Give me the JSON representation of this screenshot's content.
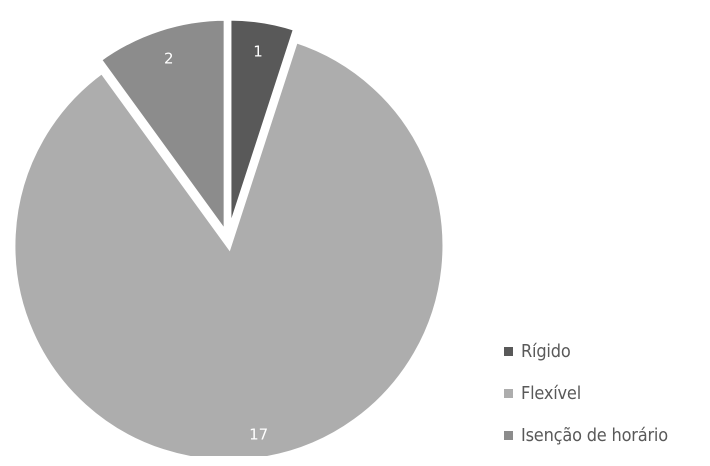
{
  "chart_data": {
    "type": "pie",
    "title": "",
    "categories": [
      "Rígido",
      "Flexível",
      "Isenção de horário"
    ],
    "values": [
      1,
      17,
      2
    ],
    "colors": [
      "#595959",
      "#adadad",
      "#8c8c8c"
    ],
    "data_labels": [
      "1",
      "17",
      "2"
    ],
    "legend_position": "bottom-right",
    "exploded": true
  }
}
